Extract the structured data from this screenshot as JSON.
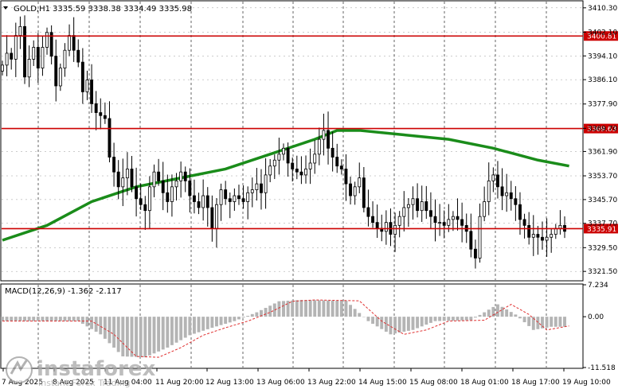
{
  "header": {
    "symbol_label": "GOLD,H1",
    "ohlc": "3335.59 3338.38 3334.49 3335.98"
  },
  "macd_panel": {
    "label": "MACD(12,26,9) -1.362 -2.117",
    "axis_ticks": [
      "7.234",
      "0.00",
      "-11.518"
    ]
  },
  "watermark": {
    "brand": "instaforex",
    "tagline": "Instant Forex Trading"
  },
  "colors": {
    "background": "#ffffff",
    "candles": "#000000",
    "level_lines": "#cc0000",
    "moving_average": "#1a8c1a",
    "macd_histogram": "#b4b4b4",
    "macd_signal": "#e03030",
    "label_box": "#cc0000",
    "grid": "#000000"
  },
  "chart_data": {
    "type": "candlestick",
    "y_axis_ticks": [
      3410.3,
      3402.1,
      3394.1,
      3386.1,
      3377.9,
      3369.7,
      3361.9,
      3353.7,
      3345.7,
      3337.7,
      3329.5,
      3321.5
    ],
    "y_axis_tick_labels": [
      "3410.30",
      "3402.10",
      "3394.10",
      "3386.10",
      "3377.90",
      "3369.70",
      "3361.90",
      "3353.70",
      "3345.70",
      "3337.70",
      "3329.50",
      "3321.50"
    ],
    "ylim": [
      3318.6,
      3412.4
    ],
    "x_tick_labels": [
      "7 Aug 2025",
      "8 Aug 2025",
      "11 Aug 04:00",
      "11 Aug 20:00",
      "12 Aug 13:00",
      "13 Aug 06:00",
      "13 Aug 22:00",
      "14 Aug 15:00",
      "15 Aug 08:00",
      "18 Aug 01:00",
      "18 Aug 17:00",
      "19 Aug 10:00"
    ],
    "horizontal_levels": [
      {
        "value": 3400.81,
        "label": "3400.81"
      },
      {
        "value": 3369.63,
        "label": "3369.63"
      },
      {
        "value": 3335.91,
        "label": "3335.91"
      }
    ],
    "close_series": [
      3391,
      3395,
      3393,
      3401,
      3404,
      3387,
      3393,
      3397,
      3390,
      3397,
      3402,
      3394,
      3384,
      3390,
      3396,
      3401,
      3396,
      3392,
      3382,
      3386,
      3378,
      3375,
      3374,
      3373,
      3360,
      3355,
      3350,
      3353,
      3356,
      3350,
      3346,
      3344,
      3342,
      3350,
      3355,
      3352,
      3348,
      3345,
      3350,
      3352,
      3355,
      3352,
      3347,
      3345,
      3343,
      3347,
      3343,
      3336,
      3344,
      3349,
      3346,
      3345,
      3347,
      3346,
      3345,
      3348,
      3349,
      3351,
      3348,
      3354,
      3357,
      3359,
      3361,
      3363,
      3358,
      3356,
      3355,
      3354,
      3356,
      3358,
      3361,
      3366,
      3369,
      3363,
      3360,
      3357,
      3356,
      3351,
      3347,
      3350,
      3353,
      3343,
      3340,
      3338,
      3336,
      3335,
      3338,
      3334,
      3337,
      3340,
      3343,
      3344,
      3346,
      3342,
      3345,
      3342,
      3340,
      3338,
      3338,
      3337,
      3339,
      3340,
      3339,
      3337,
      3335,
      3329,
      3326,
      3340,
      3345,
      3352,
      3354,
      3350,
      3347,
      3348,
      3346,
      3344,
      3339,
      3337,
      3333,
      3334,
      3333,
      3332,
      3333,
      3334,
      3336,
      3337,
      3335
    ],
    "moving_average": [
      {
        "t": 0,
        "v": 3332.0
      },
      {
        "t": 10,
        "v": 3337.0
      },
      {
        "t": 20,
        "v": 3345.0
      },
      {
        "t": 30,
        "v": 3350.0
      },
      {
        "t": 40,
        "v": 3353.0
      },
      {
        "t": 50,
        "v": 3356.0
      },
      {
        "t": 60,
        "v": 3361.0
      },
      {
        "t": 70,
        "v": 3366.0
      },
      {
        "t": 75,
        "v": 3369.0
      },
      {
        "t": 80,
        "v": 3369.0
      },
      {
        "t": 90,
        "v": 3367.5
      },
      {
        "t": 100,
        "v": 3366.0
      },
      {
        "t": 110,
        "v": 3363.0
      },
      {
        "t": 120,
        "v": 3359.0
      },
      {
        "t": 127,
        "v": 3357.0
      }
    ],
    "macd_ylim": [
      -11.518,
      7.234
    ],
    "macd_signal": [
      {
        "t": 0,
        "v": -1.0
      },
      {
        "t": 20,
        "v": -1.0
      },
      {
        "t": 25,
        "v": -4.0
      },
      {
        "t": 30,
        "v": -9.0
      },
      {
        "t": 35,
        "v": -9.2
      },
      {
        "t": 40,
        "v": -7.0
      },
      {
        "t": 45,
        "v": -4.2
      },
      {
        "t": 50,
        "v": -2.5
      },
      {
        "t": 55,
        "v": -1.0
      },
      {
        "t": 60,
        "v": 1.0
      },
      {
        "t": 65,
        "v": 3.5
      },
      {
        "t": 70,
        "v": 3.8
      },
      {
        "t": 80,
        "v": 3.6
      },
      {
        "t": 85,
        "v": -1.0
      },
      {
        "t": 90,
        "v": -4.0
      },
      {
        "t": 95,
        "v": -3.0
      },
      {
        "t": 100,
        "v": -1.0
      },
      {
        "t": 108,
        "v": -0.8
      },
      {
        "t": 114,
        "v": 2.8
      },
      {
        "t": 118,
        "v": 0.5
      },
      {
        "t": 122,
        "v": -3.0
      },
      {
        "t": 127,
        "v": -2.1
      }
    ]
  }
}
